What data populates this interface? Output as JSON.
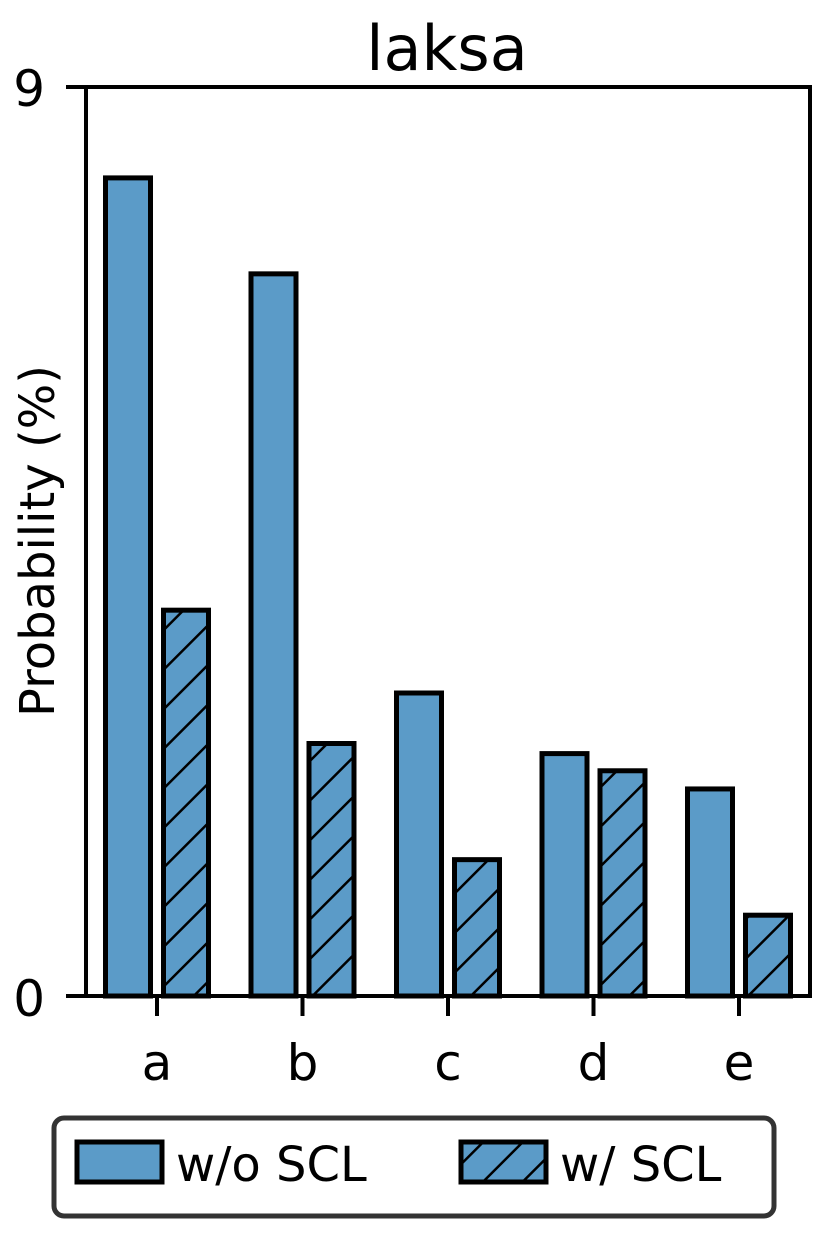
{
  "chart_data": {
    "type": "bar",
    "title": "laksa",
    "xlabel": "",
    "ylabel": "Probability (%)",
    "ylim": [
      0,
      9
    ],
    "y_ticks": [
      "0",
      "9"
    ],
    "categories": [
      "a",
      "b",
      "c",
      "d",
      "e"
    ],
    "series": [
      {
        "name": "w/o SCL",
        "values": [
          8.1,
          7.15,
          3.0,
          2.4,
          2.05
        ],
        "color": "#5b9bc8",
        "hatch": "none"
      },
      {
        "name": "w/ SCL",
        "values": [
          3.82,
          2.5,
          1.35,
          2.23,
          0.8
        ],
        "color": "#5b9bc8",
        "hatch": "diagonal"
      }
    ],
    "grid": false,
    "legend_position": "bottom"
  }
}
